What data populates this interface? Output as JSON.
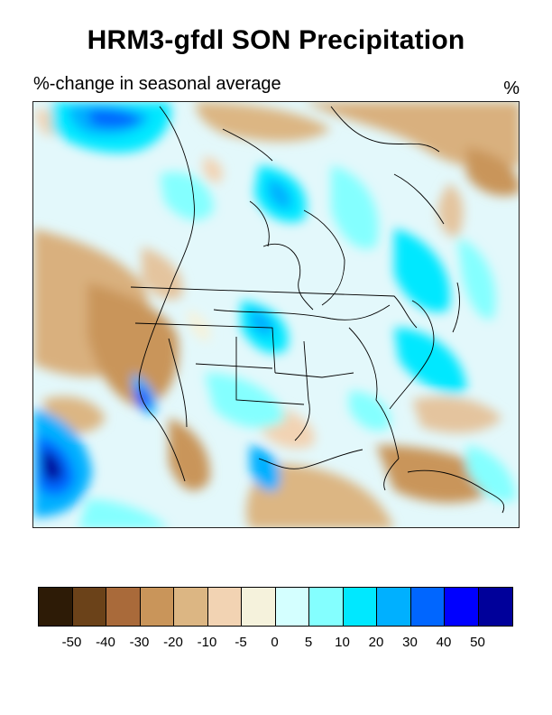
{
  "title": "HRM3-gfdl SON Precipitation",
  "subtitle": "%-change in seasonal average",
  "units": "%",
  "legend": {
    "colors": [
      "#2d1b06",
      "#6b4219",
      "#a96a3a",
      "#c9955a",
      "#dcb683",
      "#f2d3b3",
      "#f5f2dc",
      "#d4ffff",
      "#84ffff",
      "#00e8ff",
      "#00b0ff",
      "#0066ff",
      "#0000ff",
      "#00009a"
    ],
    "labels": [
      "-50",
      "-40",
      "-30",
      "-20",
      "-10",
      "-5",
      "0",
      "5",
      "10",
      "20",
      "30",
      "40",
      "50"
    ]
  }
}
